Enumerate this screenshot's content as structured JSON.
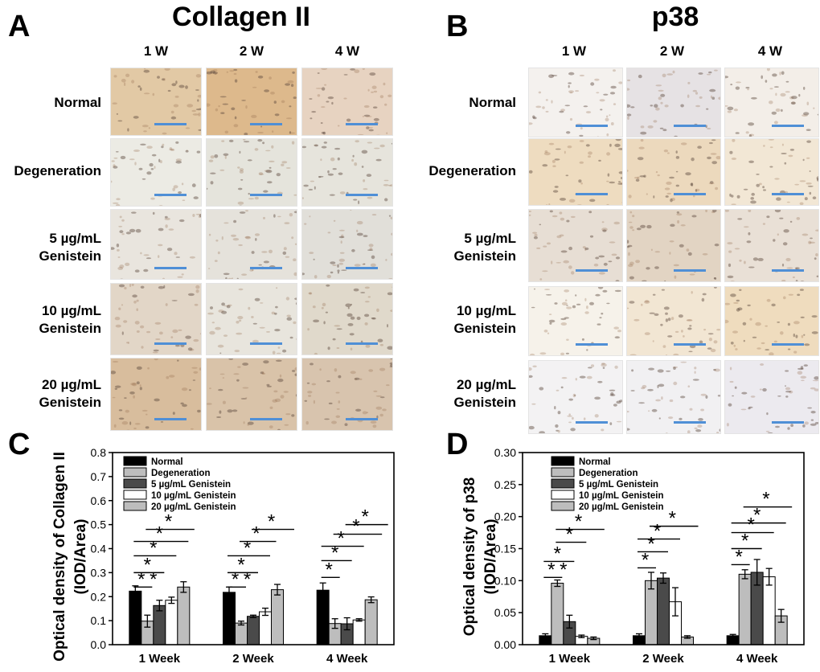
{
  "panels": {
    "a": {
      "letter": "A",
      "title": "Collagen II"
    },
    "b": {
      "letter": "B",
      "title": "p38"
    },
    "c": {
      "letter": "C"
    },
    "d": {
      "letter": "D"
    }
  },
  "weeks": [
    "1 W",
    "2 W",
    "4 W"
  ],
  "groups": [
    {
      "line1": "Normal",
      "line2": ""
    },
    {
      "line1": "Degeneration",
      "line2": ""
    },
    {
      "line1": "5 µg/mL",
      "line2": "Genistein"
    },
    {
      "line1": "10 µg/mL",
      "line2": "Genistein"
    },
    {
      "line1": "20 µg/mL",
      "line2": "Genistein"
    }
  ],
  "tile_colors": {
    "collagen": [
      [
        "#e2c9a5",
        "#ddb98c",
        "#e7d3c1"
      ],
      [
        "#ecebe4",
        "#e5e4dc",
        "#e6e4dc"
      ],
      [
        "#e9e5de",
        "#e5e2db",
        "#e1dfd9"
      ],
      [
        "#e2d6c7",
        "#e8e5dd",
        "#e0d9cb"
      ],
      [
        "#d8bd9d",
        "#d9c3a9",
        "#d8c4ae"
      ]
    ],
    "p38": [
      [
        "#f4f1ee",
        "#e6e2e4",
        "#f3eee8"
      ],
      [
        "#eedcc0",
        "#ecd9bd",
        "#f2e7d5"
      ],
      [
        "#e7ded4",
        "#e2d4c3",
        "#e9e0d6"
      ],
      [
        "#f6f2ea",
        "#f2e6d3",
        "#efdcbe"
      ],
      [
        "#f3f2f3",
        "#f1f0f2",
        "#eceaef"
      ]
    ]
  },
  "legend_labels": [
    "Normal",
    "Degeneration",
    "5 µg/mL Genistein",
    "10 µg/mL Genistein",
    "20 µg/mL Genistein"
  ],
  "series_colors": [
    "#000000",
    "#bdbdbd",
    "#4a4a4a",
    "#ffffff",
    "#bdbdbd"
  ],
  "chart_data": [
    {
      "type": "bar",
      "categories": [
        "1 Week",
        "2 Week",
        "4 Week"
      ],
      "ylabel": "Optical density of Collagen II\n(IOD/Area)",
      "ylim": [
        0,
        0.8
      ],
      "yticks": [
        0.0,
        0.1,
        0.2,
        0.3,
        0.4,
        0.5,
        0.6,
        0.7,
        0.8
      ],
      "ytick_labels": [
        "0.0",
        "0.1",
        "0.2",
        "0.3",
        "0.4",
        "0.5",
        "0.6",
        "0.7",
        "0.8"
      ],
      "series": [
        {
          "name": "Normal",
          "values": [
            0.223,
            0.218,
            0.227
          ],
          "errors": [
            0.022,
            0.022,
            0.03
          ]
        },
        {
          "name": "Degeneration",
          "values": [
            0.098,
            0.09,
            0.088
          ],
          "errors": [
            0.025,
            0.008,
            0.02
          ]
        },
        {
          "name": "5 µg/mL Genistein",
          "values": [
            0.163,
            0.118,
            0.087
          ],
          "errors": [
            0.022,
            0.005,
            0.025
          ]
        },
        {
          "name": "10 µg/mL Genistein",
          "values": [
            0.185,
            0.137,
            0.103
          ],
          "errors": [
            0.013,
            0.015,
            0.005
          ]
        },
        {
          "name": "20 µg/mL Genistein",
          "values": [
            0.24,
            0.229,
            0.187
          ],
          "errors": [
            0.022,
            0.022,
            0.012
          ]
        }
      ],
      "significance": "*",
      "legend": "top-left"
    },
    {
      "type": "bar",
      "categories": [
        "1 Week",
        "2 Week",
        "4 Week"
      ],
      "ylabel": "Optical density of p38\n(IOD/Area)",
      "ylim": [
        0,
        0.3
      ],
      "yticks": [
        0,
        0.05,
        0.1,
        0.15,
        0.2,
        0.25,
        0.3
      ],
      "ytick_labels": [
        "0.00",
        "0.05",
        "0.10",
        "0.15",
        "0.20",
        "0.25",
        "0.30"
      ],
      "series": [
        {
          "name": "Normal",
          "values": [
            0.014,
            0.014,
            0.014
          ],
          "errors": [
            0.003,
            0.003,
            0.002
          ]
        },
        {
          "name": "Degeneration",
          "values": [
            0.096,
            0.1,
            0.11
          ],
          "errors": [
            0.005,
            0.013,
            0.007
          ]
        },
        {
          "name": "5 µg/mL Genistein",
          "values": [
            0.036,
            0.104,
            0.113
          ],
          "errors": [
            0.01,
            0.008,
            0.02
          ]
        },
        {
          "name": "10 µg/mL Genistein",
          "values": [
            0.013,
            0.067,
            0.106
          ],
          "errors": [
            0.002,
            0.022,
            0.013
          ]
        },
        {
          "name": "20 µg/mL Genistein",
          "values": [
            0.01,
            0.012,
            0.045
          ],
          "errors": [
            0.002,
            0.002,
            0.01
          ]
        }
      ],
      "significance": "*",
      "legend": "top-left"
    }
  ]
}
